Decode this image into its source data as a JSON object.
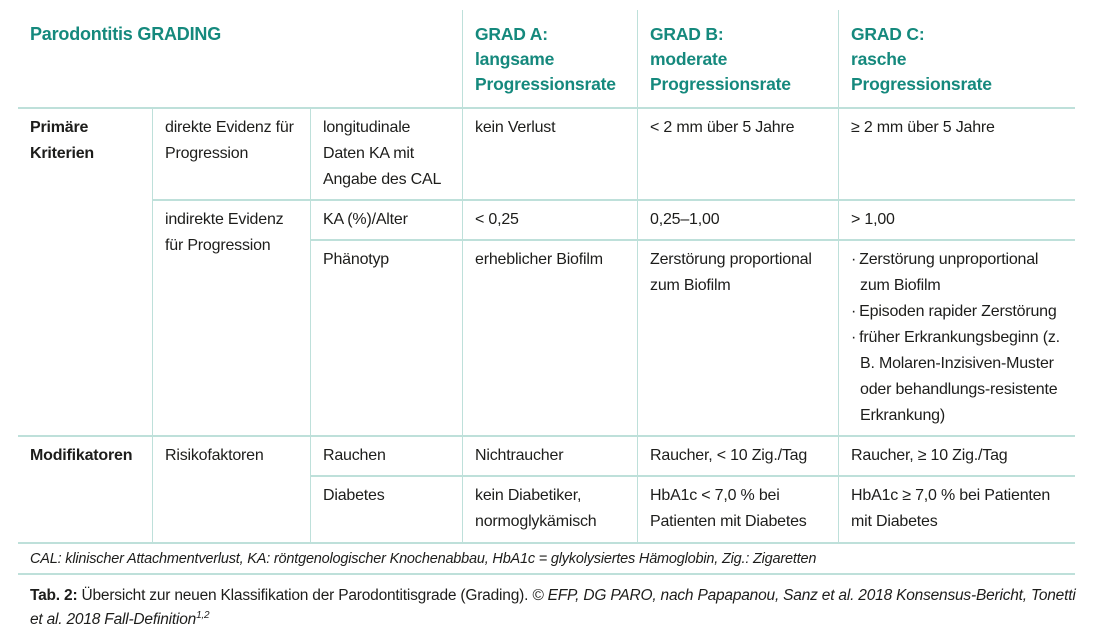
{
  "theme": {
    "accent_color": "#15897D",
    "border_color": "#BEE0DA",
    "text_color": "#1D1D1B"
  },
  "header": {
    "title": "Parodontitis GRADING",
    "grade_a": "GRAD A:\nlangsame\nProgressionsrate",
    "grade_b": "GRAD B:\nmoderate\nProgressionsrate",
    "grade_c": "GRAD C:\nrasche\nProgressionsrate"
  },
  "body": {
    "primary": {
      "label": "Primäre Kriterien",
      "direct": {
        "evidence": "direkte Evidenz für Progression",
        "criterion": "longitudinale Daten KA mit Angabe des CAL",
        "a": "kein Verlust",
        "b": "< 2 mm über 5 Jahre",
        "c": "≥ 2 mm über 5 Jahre"
      },
      "indirect": {
        "evidence": "indirekte Evidenz für Progression",
        "ratio": {
          "criterion": "KA (%)/Alter",
          "a": "< 0,25",
          "b": "0,25–1,00",
          "c": "> 1,00"
        },
        "phenotype": {
          "criterion": "Phänotyp",
          "a": "erheblicher Biofilm",
          "b": "Zerstörung proportional zum Biofilm",
          "c_items": [
            "Zerstörung unproportional zum Biofilm",
            "Episoden rapider Zerstörung",
            "früher Erkrankungsbeginn (z. B. Molaren-Inzisiven-Muster oder behandlungs-resistente Erkrankung)"
          ]
        }
      }
    },
    "modifiers": {
      "label": "Modifikatoren",
      "evidence": "Risikofaktoren",
      "smoking": {
        "criterion": "Rauchen",
        "a": "Nichtraucher",
        "b": "Raucher, < 10 Zig./Tag",
        "c": "Raucher, ≥ 10 Zig./Tag"
      },
      "diabetes": {
        "criterion": "Diabetes",
        "a": "kein Diabetiker, normoglykämisch",
        "b": "HbA1c < 7,0 % bei Patienten mit Diabetes",
        "c": "HbA1c ≥ 7,0 % bei Patienten mit Diabetes"
      }
    }
  },
  "footnote": {
    "text": "CAL: klinischer Attachmentverlust, KA: röntgenologischer Knochenabbau, HbA1c = glykolysiertes Hämoglobin, Zig.: Zigaretten"
  },
  "caption": {
    "label": "Tab. 2:",
    "text": " Übersicht zur neuen Klassifikation der Parodontitisgrade (Grading). ",
    "credit": "© EFP, DG PARO, nach Papapanou, Sanz et al. 2018 Konsensus-Bericht, Tonetti et al. 2018 Fall-Definition",
    "refs": "1,2"
  }
}
